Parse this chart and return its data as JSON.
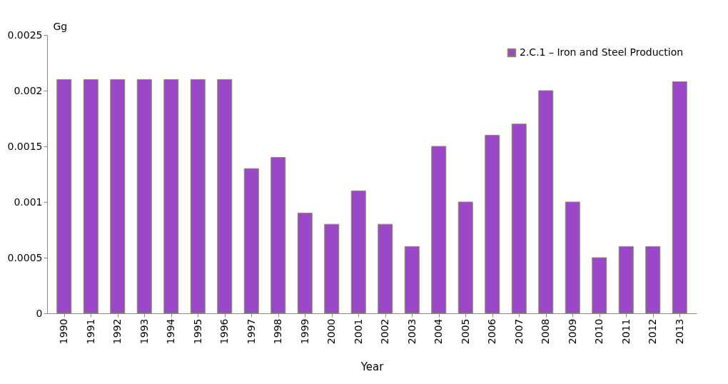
{
  "chart_data": {
    "type": "bar",
    "xlabel": "Year",
    "ylabel": "Gg",
    "categories": [
      "1990",
      "1991",
      "1992",
      "1993",
      "1994",
      "1995",
      "1996",
      "1997",
      "1998",
      "1999",
      "2000",
      "2001",
      "2002",
      "2003",
      "2004",
      "2005",
      "2006",
      "2007",
      "2008",
      "2009",
      "2010",
      "2011",
      "2012",
      "2013"
    ],
    "series": [
      {
        "name": "2.C.1 – Iron and Steel Production",
        "color": "#9a48c8",
        "values": [
          0.0021,
          0.0021,
          0.0021,
          0.0021,
          0.0021,
          0.0021,
          0.0021,
          0.0013,
          0.0014,
          0.0009,
          0.0008,
          0.0011,
          0.0008,
          0.0006,
          0.0015,
          0.001,
          0.0016,
          0.0017,
          0.002,
          0.001,
          0.0005,
          0.0006,
          0.0006,
          0.00208
        ]
      }
    ],
    "ylim": [
      0,
      0.0025
    ],
    "yticks": [
      0,
      0.0005,
      0.001,
      0.0015,
      0.002,
      0.0025
    ],
    "grid": false,
    "legend": "top right"
  }
}
